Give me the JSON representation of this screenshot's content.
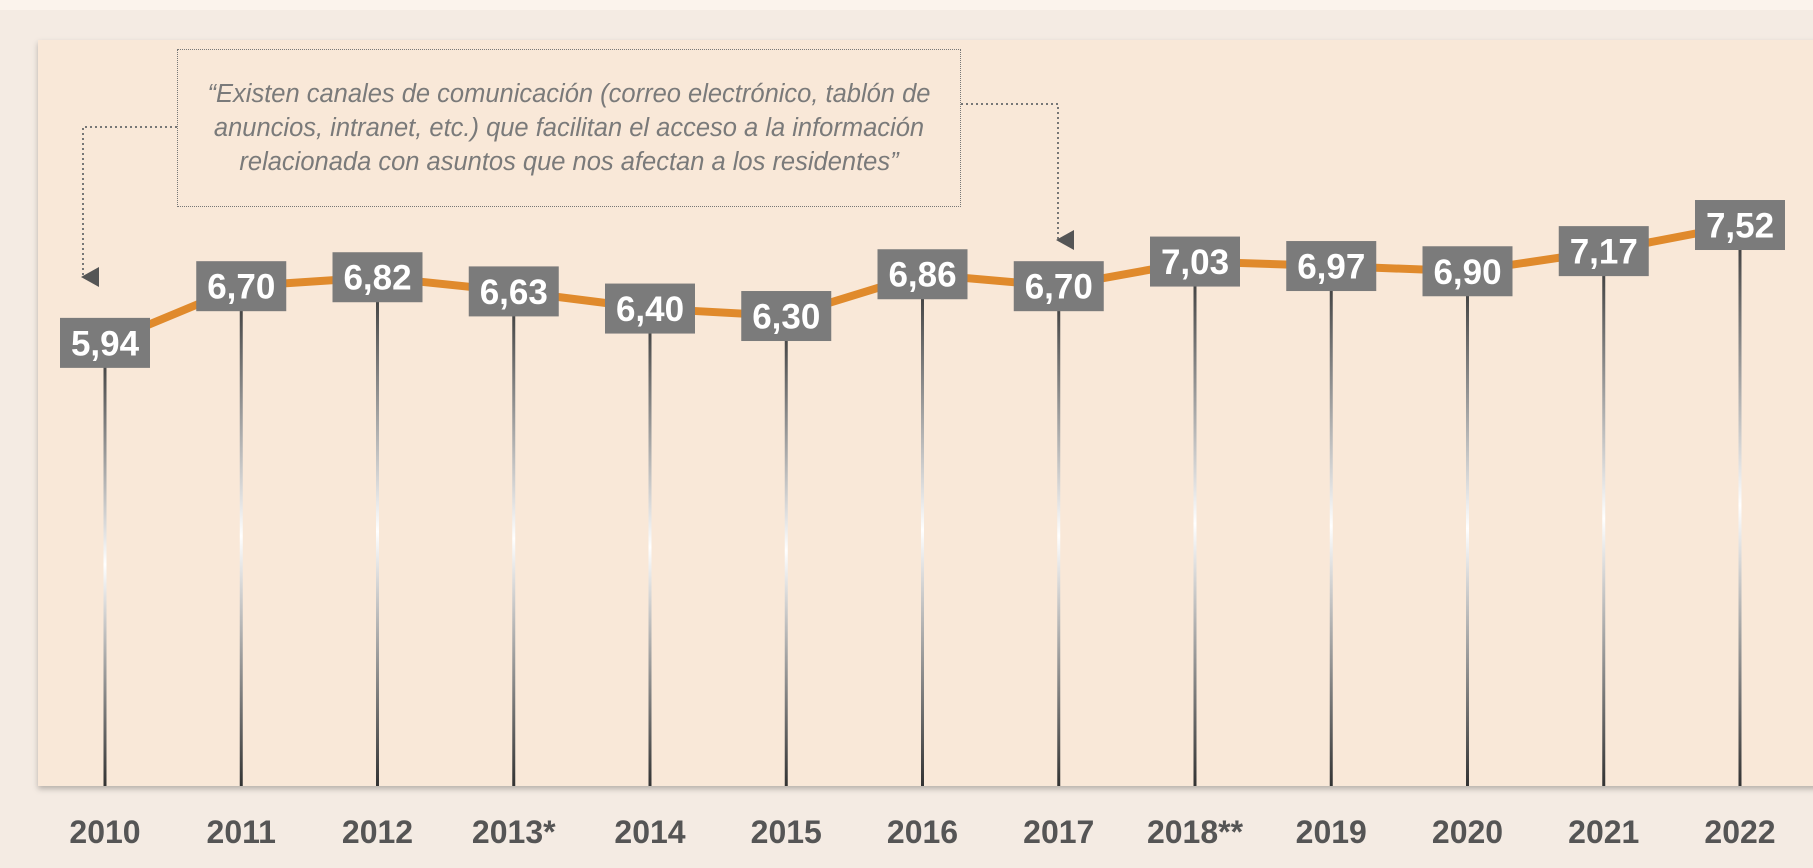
{
  "chart_data": {
    "type": "line",
    "annotation": "“Existen canales de comunicación (correo electrónico, tablón de anuncios, intranet, etc.) que facilitan el acceso a la información relacionada con asuntos que nos afectan a los residentes”",
    "categories": [
      "2010",
      "2011",
      "2012",
      "2013*",
      "2014",
      "2015",
      "2016",
      "2017",
      "2018**",
      "2019",
      "2020",
      "2021",
      "2022"
    ],
    "values": [
      5.94,
      6.7,
      6.82,
      6.63,
      6.4,
      6.3,
      6.86,
      6.7,
      7.03,
      6.97,
      6.9,
      7.17,
      7.52
    ],
    "value_labels": [
      "5,94",
      "6,70",
      "6,82",
      "6,63",
      "6,40",
      "6,30",
      "6,86",
      "6,70",
      "7,03",
      "6,97",
      "6,90",
      "7,17",
      "7,52"
    ],
    "color": "#e08a2c",
    "ylim": [
      0,
      10
    ]
  }
}
